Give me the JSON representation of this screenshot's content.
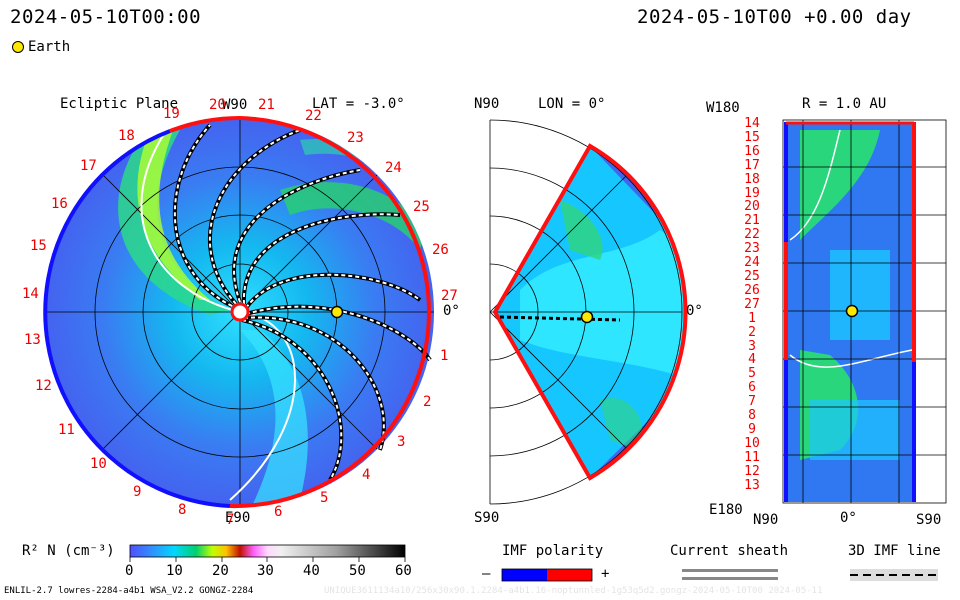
{
  "header": {
    "timestamp_left": "2024-05-10T00:00",
    "timestamp_right": "2024-05-10T00 +0.00 day"
  },
  "legend": {
    "earth_label": "Earth"
  },
  "panels": {
    "ecliptic": {
      "title": "Ecliptic Plane",
      "lat_label": "LAT = -3.0°",
      "top_label": "W90",
      "bottom_label": "E90",
      "right_label": "0°"
    },
    "meridional": {
      "top_label": "N90",
      "lon_label": "LON = 0°",
      "bottom_label": "S90",
      "right_label": "0°"
    },
    "synoptic": {
      "top_left_label": "W180",
      "r_label": "R = 1.0 AU",
      "bottom_left_label": "E180",
      "x_left": "N90",
      "x_mid": "0°",
      "x_right": "S90"
    }
  },
  "carrington_labels": [
    "19",
    "20",
    "21",
    "22",
    "23",
    "24",
    "25",
    "26",
    "27",
    "1",
    "2",
    "3",
    "4",
    "5",
    "6",
    "7",
    "8",
    "9",
    "10",
    "11",
    "12",
    "13",
    "14",
    "15",
    "16",
    "17",
    "18"
  ],
  "synoptic_rows": [
    "14",
    "15",
    "16",
    "17",
    "18",
    "19",
    "20",
    "21",
    "22",
    "23",
    "24",
    "25",
    "26",
    "27",
    "1",
    "2",
    "3",
    "4",
    "5",
    "6",
    "7",
    "8",
    "9",
    "10",
    "11",
    "12",
    "13"
  ],
  "colorbar": {
    "label": "R² N (cm⁻³)",
    "ticks": [
      "0",
      "10",
      "20",
      "30",
      "40",
      "50",
      "60"
    ],
    "range": [
      0,
      60
    ]
  },
  "imf": {
    "label": "IMF polarity",
    "minus": "–",
    "plus": "+",
    "neg_color": "#0000ff",
    "pos_color": "#ff0000"
  },
  "sheath": {
    "label": "Current sheath"
  },
  "imf3d": {
    "label": "3D IMF line"
  },
  "footer": {
    "left": "ENLIL-2.7 lowres-2284-a4b1 WSA_V2.2 GONGZ-2284",
    "right": "UNIQUE3611134a10/256x30x90.1.2284-a4b1.16-noptunnled-1g53q5d2.gongz-2024-05-10T00   2024-05-11"
  }
}
